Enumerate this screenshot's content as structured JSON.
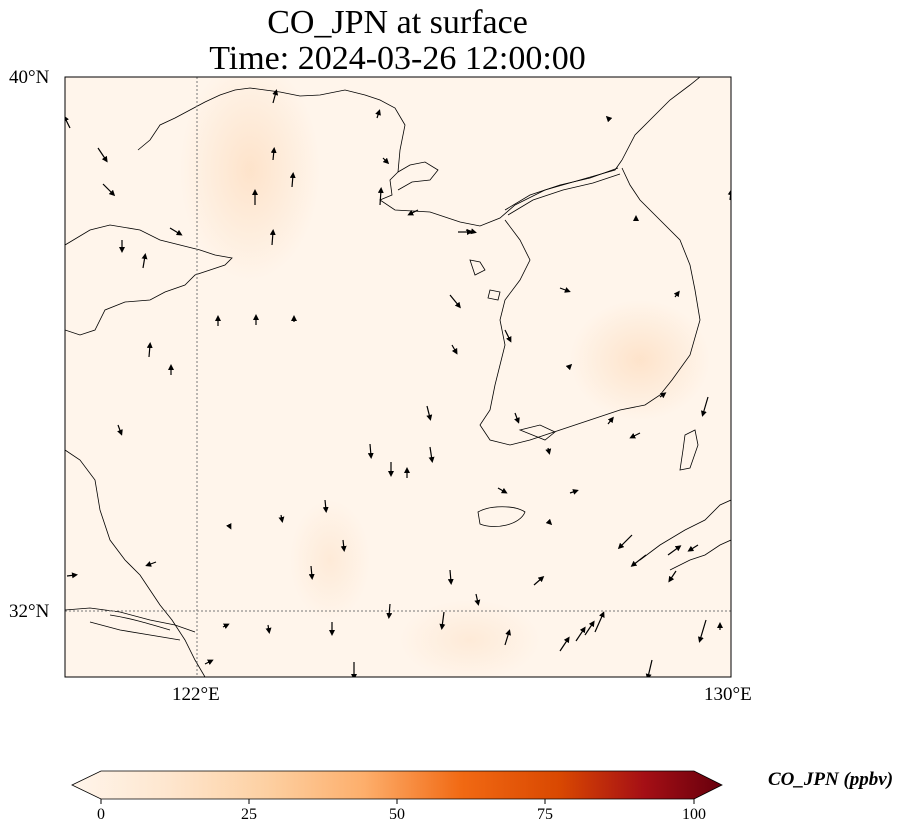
{
  "title": {
    "line1": "CO_JPN at surface",
    "line2": "Time: 2024-03-26 12:00:00"
  },
  "map": {
    "lon_range": [
      121,
      130
    ],
    "lat_range": [
      31.1,
      40
    ],
    "gridlines": {
      "lon": [
        122,
        130
      ],
      "lat": [
        32,
        40
      ]
    },
    "lon_ticks": [
      "122°E",
      "130°E"
    ],
    "lat_ticks": [
      "40°N",
      "32°N"
    ],
    "field_color_low": "#fff5eb",
    "field_color_high": "#fde0c5",
    "coastline_color": "#000000"
  },
  "colorbar": {
    "label": "CO_JPN (ppbv)",
    "ticks": [
      "0",
      "25",
      "50",
      "75",
      "100"
    ],
    "tick_values": [
      0,
      25,
      50,
      75,
      100
    ],
    "min": 0,
    "max": 100,
    "colormap": "Oranges-to-dark-red",
    "colors": [
      "#fff5eb",
      "#fee6ce",
      "#fdd0a2",
      "#fdae6b",
      "#f16913",
      "#d94801",
      "#a50f15",
      "#67000d"
    ]
  }
}
